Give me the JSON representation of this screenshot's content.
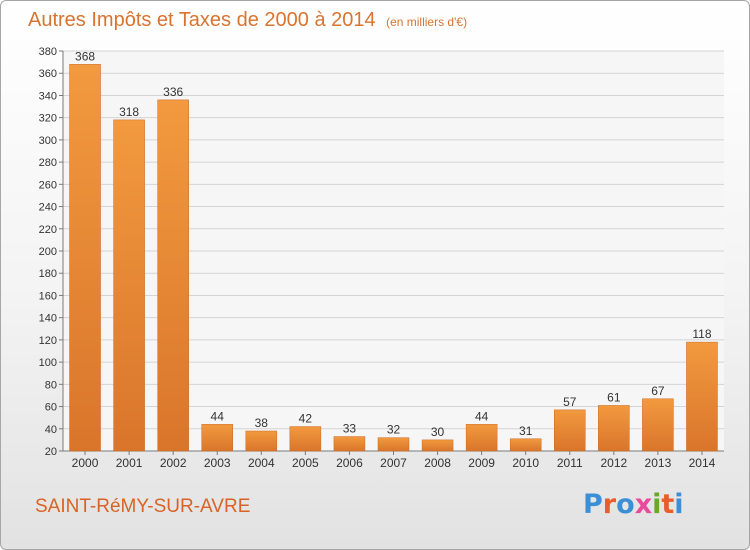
{
  "header": {
    "title": "Autres Impôts et Taxes de 2000 à 2014",
    "unit": "(en milliers d'€)"
  },
  "footer": {
    "location": "SAINT-RéMY-SUR-AVRE",
    "logo_text": "Proxiti",
    "logo_colors": [
      "#3b8fd6",
      "#e95d2b",
      "#3b8fd6",
      "#e84a9c",
      "#6aa825",
      "#e95d2b",
      "#3b8fd6"
    ]
  },
  "colors": {
    "bar": "#f29a3f",
    "bar_dark": "#d9752b",
    "title": "#d8742f",
    "location": "#d96326"
  },
  "chart_data": {
    "type": "bar",
    "title": "Autres Impôts et Taxes de 2000 à 2014",
    "categories": [
      "2000",
      "2001",
      "2002",
      "2003",
      "2004",
      "2005",
      "2006",
      "2007",
      "2008",
      "2009",
      "2010",
      "2011",
      "2012",
      "2013",
      "2014"
    ],
    "values": [
      368,
      318,
      336,
      44,
      38,
      42,
      33,
      32,
      30,
      44,
      31,
      57,
      61,
      67,
      118
    ],
    "data_labels": [
      "368",
      "318",
      "336",
      "44",
      "38",
      "42",
      "33",
      "32",
      "30",
      "44",
      "31",
      "57",
      "61",
      "67",
      "118"
    ],
    "ylim": [
      20,
      380
    ],
    "yticks": [
      "20",
      "40",
      "60",
      "80",
      "100",
      "120",
      "140",
      "160",
      "180",
      "200",
      "220",
      "240",
      "260",
      "280",
      "300",
      "320",
      "340",
      "360",
      "380"
    ],
    "grid": true,
    "legend": "none"
  }
}
